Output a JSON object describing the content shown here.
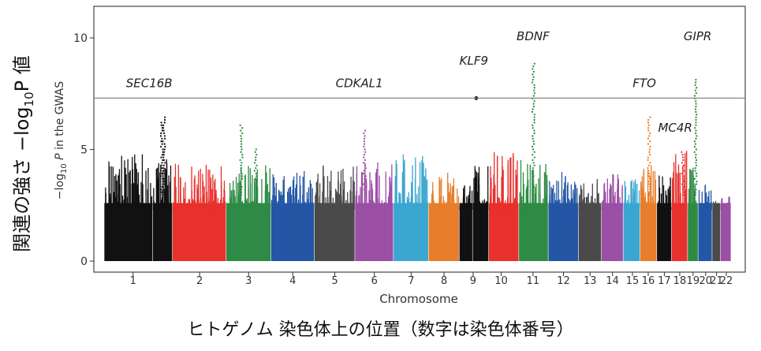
{
  "outer_ylabel": "関連の強さ −log₁₀P 値",
  "outer_ylabel_parts": {
    "main": "関連の強さ −log",
    "sub": "10",
    "tail": "P 値"
  },
  "outer_xlabel": "ヒトゲノム 染色体上の位置（数字は染色体番号）",
  "chart_data": {
    "type": "scatter",
    "subtype": "manhattan",
    "title": "",
    "xlabel": "Chromosome",
    "ylabel": "−log₁₀ P in the GWAS",
    "ylabel_parts": {
      "pre": "−log",
      "sub": "10",
      "mid": " P",
      "post": " in the GWAS"
    },
    "ylim": [
      0,
      11.5
    ],
    "yticks": [
      0,
      5,
      10
    ],
    "significance_threshold": 7.3,
    "grid": false,
    "legend": "none",
    "chromosomes": [
      {
        "label": "1",
        "start": 0,
        "end": 13.8,
        "color": "#111111",
        "peak": 4.8
      },
      {
        "label": "",
        "start": 13.8,
        "end": 19.5,
        "color": "#111111",
        "peak": 4.6
      },
      {
        "label": "2",
        "start": 19.5,
        "end": 34.8,
        "color": "#e8302c",
        "peak": 4.4
      },
      {
        "label": "3",
        "start": 34.8,
        "end": 47.6,
        "color": "#2e8b45",
        "peak": 4.3
      },
      {
        "label": "4",
        "start": 47.6,
        "end": 60.0,
        "color": "#2456a6",
        "peak": 4.2
      },
      {
        "label": "5",
        "start": 60.0,
        "end": 71.6,
        "color": "#4a4a4a",
        "peak": 4.4
      },
      {
        "label": "6",
        "start": 71.6,
        "end": 82.6,
        "color": "#9b4fa5",
        "peak": 4.6
      },
      {
        "label": "7",
        "start": 82.6,
        "end": 92.6,
        "color": "#3ba6cf",
        "peak": 4.8
      },
      {
        "label": "8",
        "start": 92.6,
        "end": 101.4,
        "color": "#e87e2b",
        "peak": 4.1
      },
      {
        "label": "9",
        "start": 101.4,
        "end": 105.2,
        "color": "#111111",
        "peak": 3.6
      },
      {
        "label": "",
        "start": 105.2,
        "end": 109.8,
        "color": "#111111",
        "peak": 4.9
      },
      {
        "label": "10",
        "start": 109.8,
        "end": 118.4,
        "color": "#e8302c",
        "peak": 4.9
      },
      {
        "label": "11",
        "start": 118.4,
        "end": 126.8,
        "color": "#2e8b45",
        "peak": 4.6
      },
      {
        "label": "12",
        "start": 126.8,
        "end": 135.4,
        "color": "#2456a6",
        "peak": 4.0
      },
      {
        "label": "13",
        "start": 135.4,
        "end": 142.0,
        "color": "#4a4a4a",
        "peak": 3.8
      },
      {
        "label": "14",
        "start": 142.0,
        "end": 148.2,
        "color": "#9b4fa5",
        "peak": 3.9
      },
      {
        "label": "15",
        "start": 148.2,
        "end": 153.0,
        "color": "#3ba6cf",
        "peak": 3.7
      },
      {
        "label": "16",
        "start": 153.0,
        "end": 157.8,
        "color": "#e87e2b",
        "peak": 4.3
      },
      {
        "label": "17",
        "start": 157.8,
        "end": 162.0,
        "color": "#111111",
        "peak": 3.9
      },
      {
        "label": "18",
        "start": 162.0,
        "end": 166.6,
        "color": "#e8302c",
        "peak": 5.0
      },
      {
        "label": "19",
        "start": 166.6,
        "end": 169.6,
        "color": "#2e8b45",
        "peak": 4.2
      },
      {
        "label": "20",
        "start": 169.6,
        "end": 173.6,
        "color": "#2456a6",
        "peak": 3.5
      },
      {
        "label": "21",
        "start": 173.6,
        "end": 176.0,
        "color": "#4a4a4a",
        "peak": 2.9
      },
      {
        "label": "22",
        "start": 176.0,
        "end": 179.0,
        "color": "#9b4fa5",
        "peak": 3.0
      }
    ],
    "tick_labels": [
      {
        "label": "1",
        "x": 8.2
      },
      {
        "label": "2",
        "x": 27.2
      },
      {
        "label": "3",
        "x": 41.2
      },
      {
        "label": "4",
        "x": 53.8
      },
      {
        "label": "5",
        "x": 65.8
      },
      {
        "label": "6",
        "x": 77.1
      },
      {
        "label": "7",
        "x": 87.6
      },
      {
        "label": "8",
        "x": 97.0
      },
      {
        "label": "9",
        "x": 105.3
      },
      {
        "label": "10",
        "x": 113.3
      },
      {
        "label": "11",
        "x": 122.4
      },
      {
        "label": "12",
        "x": 131.1
      },
      {
        "label": "13",
        "x": 138.7
      },
      {
        "label": "14",
        "x": 145.1
      },
      {
        "label": "15",
        "x": 150.8
      },
      {
        "label": "16",
        "x": 155.3
      },
      {
        "label": "17",
        "x": 159.9
      },
      {
        "label": "18",
        "x": 164.3
      },
      {
        "label": "19",
        "x": 168.1
      },
      {
        "label": "20",
        "x": 171.7
      },
      {
        "label": "21",
        "x": 174.8
      },
      {
        "label": "22",
        "x": 177.6
      }
    ],
    "peaks": [
      {
        "x": 16.8,
        "top": 6.6,
        "color": "#111111"
      },
      {
        "x": 16.2,
        "top": 6.3,
        "color": "#111111"
      },
      {
        "x": 38.9,
        "top": 6.2,
        "color": "#2e8b45"
      },
      {
        "x": 43.0,
        "top": 5.1,
        "color": "#2e8b45"
      },
      {
        "x": 74.1,
        "top": 6.0,
        "color": "#9b4fa5"
      },
      {
        "x": 122.3,
        "top": 8.9,
        "color": "#2e8b45"
      },
      {
        "x": 155.3,
        "top": 6.5,
        "color": "#e87e2b"
      },
      {
        "x": 164.9,
        "top": 5.0,
        "color": "#e8302c"
      },
      {
        "x": 168.6,
        "top": 8.2,
        "color": "#2e8b45"
      }
    ],
    "highlight_points": [
      {
        "x": 106.2,
        "y": 7.3,
        "color": "#111111"
      }
    ],
    "annotations": [
      {
        "text": "SEC16B",
        "x": 12.8,
        "y": 7.8
      },
      {
        "text": "CDKAL1",
        "x": 72.8,
        "y": 7.8
      },
      {
        "text": "KLF9",
        "x": 105.5,
        "y": 8.8
      },
      {
        "text": "BDNF",
        "x": 122.4,
        "y": 9.9
      },
      {
        "text": "FTO",
        "x": 154.2,
        "y": 7.8
      },
      {
        "text": "MC4R",
        "x": 163.0,
        "y": 5.8
      },
      {
        "text": "GIPR",
        "x": 169.4,
        "y": 9.9
      }
    ]
  }
}
